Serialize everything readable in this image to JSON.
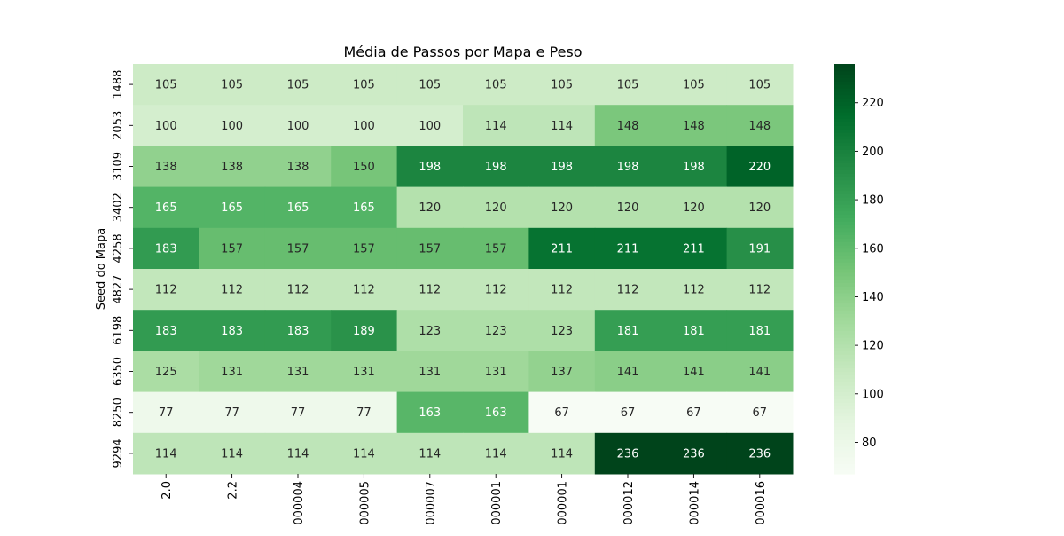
{
  "chart_data": {
    "type": "heatmap",
    "title": "Média de Passos por Mapa e Peso",
    "xlabel": "",
    "ylabel": "Seed do Mapa",
    "x_categories": [
      "2.0",
      "2.2",
      "000004",
      "000005",
      "000007",
      "000001",
      "000001",
      "000012",
      "000014",
      "000016"
    ],
    "y_categories": [
      "1488",
      "2053",
      "3109",
      "3402",
      "4258",
      "4827",
      "6198",
      "6350",
      "8250",
      "9294"
    ],
    "values": [
      [
        105,
        105,
        105,
        105,
        105,
        105,
        105,
        105,
        105,
        105
      ],
      [
        100,
        100,
        100,
        100,
        100,
        114,
        114,
        148,
        148,
        148
      ],
      [
        138,
        138,
        138,
        150,
        198,
        198,
        198,
        198,
        198,
        220
      ],
      [
        165,
        165,
        165,
        165,
        120,
        120,
        120,
        120,
        120,
        120
      ],
      [
        183,
        157,
        157,
        157,
        157,
        157,
        211,
        211,
        211,
        191
      ],
      [
        112,
        112,
        112,
        112,
        112,
        112,
        112,
        112,
        112,
        112
      ],
      [
        183,
        183,
        183,
        189,
        123,
        123,
        123,
        181,
        181,
        181
      ],
      [
        125,
        131,
        131,
        131,
        131,
        131,
        137,
        141,
        141,
        141
      ],
      [
        77,
        77,
        77,
        77,
        163,
        163,
        67,
        67,
        67,
        67
      ],
      [
        114,
        114,
        114,
        114,
        114,
        114,
        114,
        236,
        236,
        236
      ]
    ],
    "colormap": "Greens",
    "vmin": 67,
    "vmax": 236,
    "colorbar_ticks": [
      "80",
      "100",
      "120",
      "140",
      "160",
      "180",
      "200",
      "220"
    ],
    "annotations": true
  }
}
